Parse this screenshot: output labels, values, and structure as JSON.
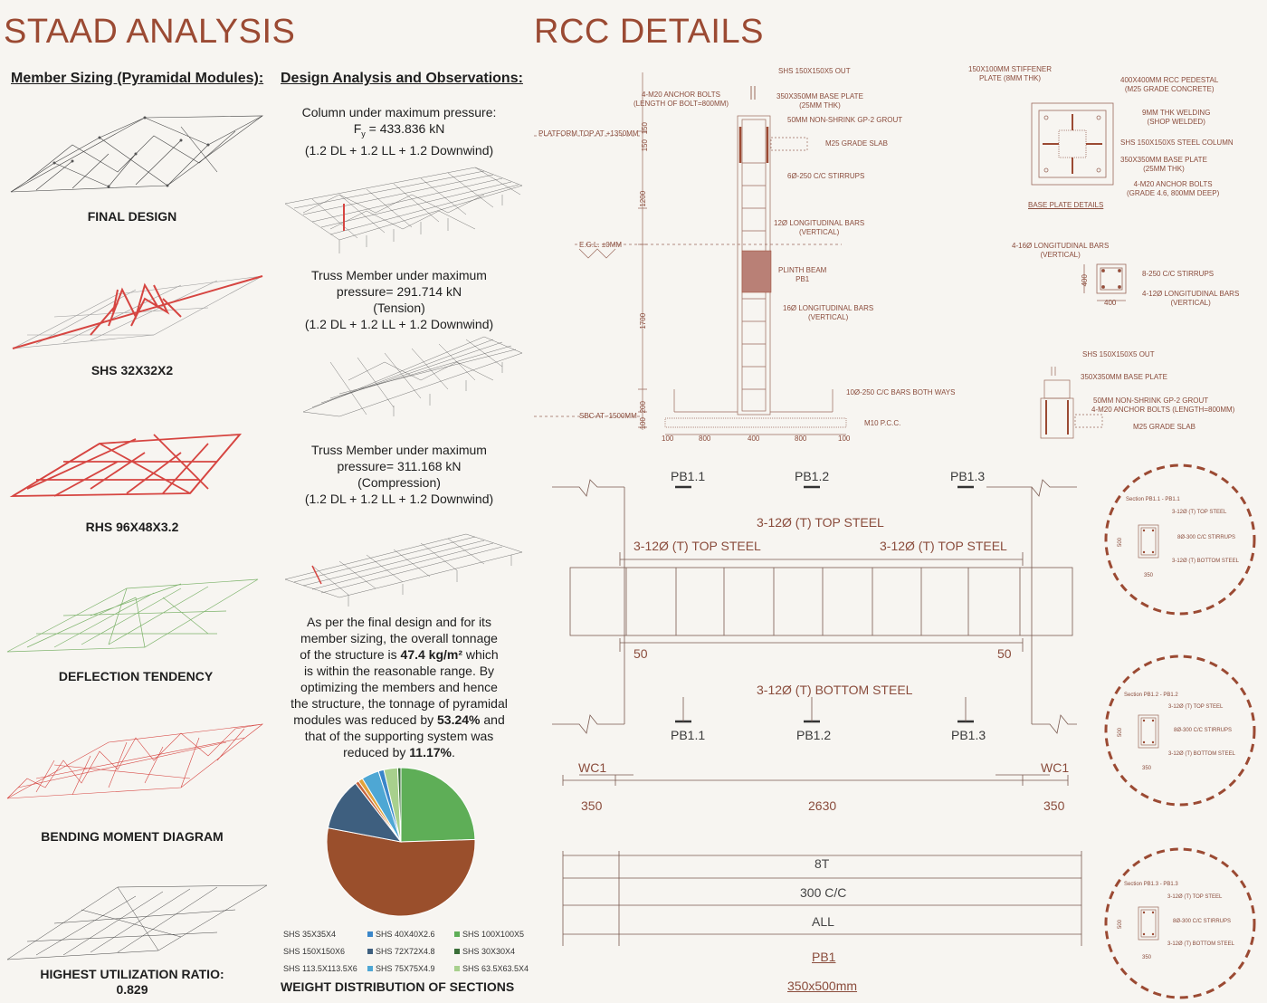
{
  "left": {
    "title": "STAAD ANALYSIS",
    "member_heading": "Member Sizing (Pyramidal Modules):",
    "captions": [
      "FINAL DESIGN",
      "SHS 32X32X2",
      "RHS 96X48X3.2",
      "DEFLECTION  TENDENCY",
      "BENDING MOMENT DIAGRAM",
      "HIGHEST UTILIZATION RATIO:",
      "0.829"
    ]
  },
  "mid": {
    "heading": "Design Analysis and Observations:",
    "obs1": [
      "Column under maximum pressure:",
      "F = 433.836 kN",
      "(1.2 DL + 1.2 LL + 1.2 Downwind)"
    ],
    "obs2": [
      "Truss Member under maximum",
      "pressure= 291.714 kN",
      "(Tension)",
      "(1.2 DL + 1.2 LL + 1.2 Downwind)"
    ],
    "obs3": [
      "Truss Member under maximum",
      "pressure= 311.168 kN",
      "(Compression)",
      "(1.2 DL + 1.2 LL + 1.2 Downwind)"
    ],
    "para_lines": [
      "As per the final design and for its",
      "member sizing, the overall tonnage",
      "of the structure is",
      "47.4 kg/m²",
      "which",
      "is within the reasonable range. By",
      "optimizing the members and hence",
      "the structure, the tonnage of pyramidal",
      "modules was reduced by",
      "53.24%",
      "and",
      "that of the supporting system was",
      "reduced by",
      "11.17%",
      "."
    ],
    "pie_title": "WEIGHT DISTRIBUTION OF SECTIONS"
  },
  "chart_data": {
    "type": "pie",
    "title": "WEIGHT DISTRIBUTION OF SECTIONS",
    "labels": [
      "SHS 100X100X5",
      "SHS 150X150X6",
      "SHS 72X72X4.8",
      "SHS 35X35X4",
      "SHS 113.5X113.5X6",
      "SHS 75X75X4.9",
      "SHS 40X40X2.6",
      "SHS 63.5X63.5X4",
      "SHS 30X30X4"
    ],
    "values": [
      24.5,
      53.5,
      11.5,
      0.8,
      1.0,
      3.8,
      1.2,
      3.0,
      0.7
    ],
    "colors": [
      "#5eae57",
      "#9a4f2c",
      "#3e5f7f",
      "#c8663f",
      "#e0a23b",
      "#4ea7d4",
      "#3a86c9",
      "#a8d08d",
      "#3a6e38"
    ],
    "legend_order": [
      {
        "label": "SHS 35X35X4",
        "color": "#c8663f"
      },
      {
        "label": "SHS 40X40X2.6",
        "color": "#3a86c9"
      },
      {
        "label": "SHS 100X100X5",
        "color": "#5eae57"
      },
      {
        "label": "SHS 150X150X6",
        "color": "#9a4f2c"
      },
      {
        "label": "SHS 72X72X4.8",
        "color": "#3e5f7f"
      },
      {
        "label": "SHS 30X30X4",
        "color": "#3a6e38"
      },
      {
        "label": "SHS 113.5X113.5X6",
        "color": "#e0a23b"
      },
      {
        "label": "SHS 75X75X4.9",
        "color": "#4ea7d4"
      },
      {
        "label": "SHS 63.5X63.5X4",
        "color": "#a8d08d"
      }
    ]
  },
  "right": {
    "title": "RCC DETAILS",
    "col_anns": {
      "shs_out": "SHS 150X150X5 OUT",
      "anchor": [
        "4-M20 ANCHOR BOLTS",
        "(LENGTH OF BOLT=800MM)"
      ],
      "base_plate": [
        "350X350MM BASE PLATE",
        "(25MM THK)"
      ],
      "grout": "50MM NON-SHRINK GP-2 GROUT",
      "platform": "PLATFORM TOP AT +1350MM",
      "slab": "M25 GRADE SLAB",
      "stirrups": "6Ø-250 C/C STIRRUPS",
      "long12": [
        "12Ø LONGITUDINAL BARS",
        "(VERTICAL)"
      ],
      "egl": "E.G.L. ±0MM",
      "plinth": [
        "PLINTH BEAM",
        "PB1"
      ],
      "long16": [
        "16Ø LONGITUDINAL BARS",
        "(VERTICAL)"
      ],
      "bars_both": "10Ø-250 C/C BARS BOTH WAYS",
      "sbc": "SBC AT -1500MM",
      "pcc": "M10 P.C.C.",
      "vdims": [
        "150",
        "150",
        "1200",
        "1700",
        "200",
        "100"
      ],
      "hdims": [
        "100",
        "800",
        "400",
        "800",
        "100"
      ]
    },
    "bp_anns": {
      "stiff": [
        "150X100MM STIFFENER",
        "PLATE (8MM THK)"
      ],
      "ped": [
        "400X400MM RCC PEDESTAL",
        "(M25 GRADE CONCRETE)"
      ],
      "weld": [
        "9MM THK WELDING",
        "(SHOP WELDED)"
      ],
      "col": "SHS 150X150X5 STEEL COLUMN",
      "plate": [
        "350X350MM BASE PLATE",
        "(25MM THK)"
      ],
      "bolts": [
        "4-M20 ANCHOR BOLTS",
        "(GRADE 4.6, 800MM DEEP)"
      ],
      "title": "BASE PLATE DETAILS"
    },
    "sec_anns": {
      "long16": [
        "4-16Ø LONGITUDINAL BARS",
        "(VERTICAL)"
      ],
      "stir": "8-250 C/C STIRRUPS",
      "long12": [
        "4-12Ø LONGITUDINAL BARS",
        "(VERTICAL)"
      ],
      "d1": "400",
      "d2": "400"
    },
    "small_anns": {
      "out": "SHS 150X150X5 OUT",
      "plate": "350X350MM BASE PLATE",
      "grout": "50MM NON-SHRINK GP-2 GROUT",
      "bolts": "4-M20 ANCHOR BOLTS (LENGTH=800MM)",
      "slab": "M25 GRADE SLAB"
    },
    "beam": {
      "pb_top": [
        "PB1.1",
        "PB1.2",
        "PB1.3"
      ],
      "top_mid": "3-12Ø (T) TOP STEEL",
      "top_l": "3-12Ø (T) TOP STEEL",
      "top_r": "3-12Ø (T) TOP STEEL",
      "d50l": "50",
      "d50r": "50",
      "bottom": "3-12Ø (T) BOTTOM STEEL",
      "pb_bot": [
        "PB1.1",
        "PB1.2",
        "PB1.3"
      ],
      "wc_l": "WC1",
      "wc_r": "WC1",
      "dims": [
        "350",
        "2630",
        "350"
      ],
      "rows": [
        "8T",
        "300 C/C",
        "ALL"
      ],
      "pb1": "PB1",
      "size": "350x500mm"
    },
    "circles": [
      {
        "title": "Section PB1.1 - PB1.1",
        "top": "3-12Ø (T) TOP STEEL",
        "stir": "8Ø-300 C/C STIRRUPS",
        "bot": "3-12Ø (T) BOTTOM STEEL",
        "h": "500",
        "w": "350"
      },
      {
        "title": "Section PB1.2 - PB1.2",
        "top": "3-12Ø (T) TOP STEEL",
        "stir": "8Ø-300 C/C STIRRUPS",
        "bot": "3-12Ø (T) BOTTOM STEEL",
        "h": "500",
        "w": "350"
      },
      {
        "title": "Section PB1.3 - PB1.3",
        "top": "3-12Ø (T) TOP STEEL",
        "stir": "8Ø-300 C/C STIRRUPS",
        "bot": "3-12Ø (T) BOTTOM STEEL",
        "h": "500",
        "w": "350"
      }
    ]
  }
}
